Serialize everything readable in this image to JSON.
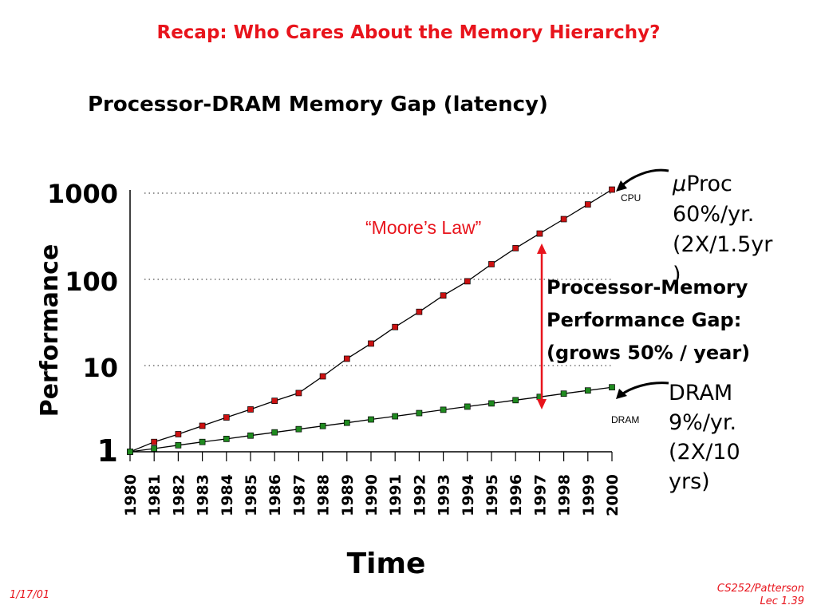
{
  "slide": {
    "title": "Recap: Who Cares About the Memory Hierarchy?",
    "footer_left": "1/17/01",
    "footer_right_line1": "CS252/Patterson",
    "footer_right_line2": "Lec 1.39"
  },
  "chart_data": {
    "type": "line",
    "title": "Processor-DRAM Memory Gap (latency)",
    "xlabel": "Time",
    "ylabel": "Performance",
    "yscale": "log",
    "ylim": [
      1,
      1000
    ],
    "yticks": [
      "1",
      "10",
      "100",
      "1000"
    ],
    "grid": "dotted horizontal at 10, 100, 1000",
    "x": [
      "1980",
      "1981",
      "1982",
      "1983",
      "1984",
      "1985",
      "1986",
      "1987",
      "1988",
      "1989",
      "1990",
      "1991",
      "1992",
      "1993",
      "1994",
      "1995",
      "1996",
      "1997",
      "1998",
      "1999",
      "2000"
    ],
    "series": [
      {
        "name": "CPU",
        "color": "#cc1111",
        "values": [
          1,
          1.3,
          1.6,
          2.0,
          2.5,
          3.1,
          3.9,
          4.8,
          7.5,
          12,
          18,
          28,
          42,
          65,
          95,
          150,
          230,
          340,
          500,
          740,
          1100
        ]
      },
      {
        "name": "DRAM",
        "color": "#1f8a1f",
        "values": [
          1,
          1.09,
          1.19,
          1.3,
          1.41,
          1.54,
          1.68,
          1.83,
          1.99,
          2.17,
          2.37,
          2.58,
          2.81,
          3.07,
          3.34,
          3.64,
          3.97,
          4.33,
          4.72,
          5.14,
          5.6
        ]
      }
    ]
  },
  "annotations": {
    "cpu_symbol": "μ",
    "cpu_lines": [
      "Proc",
      "60%/yr.",
      "(2X/1.5yr",
      ")"
    ],
    "dram_lines": [
      "DRAM",
      "9%/yr.",
      "(2X/10",
      "yrs)"
    ],
    "gap_lines": [
      "Processor-Memory",
      "Performance Gap:",
      "(grows 50% / year)"
    ],
    "moore": "“Moore’s Law”",
    "colors": {
      "title": "#e8141c",
      "gap_arrow": "#e8141c"
    }
  }
}
